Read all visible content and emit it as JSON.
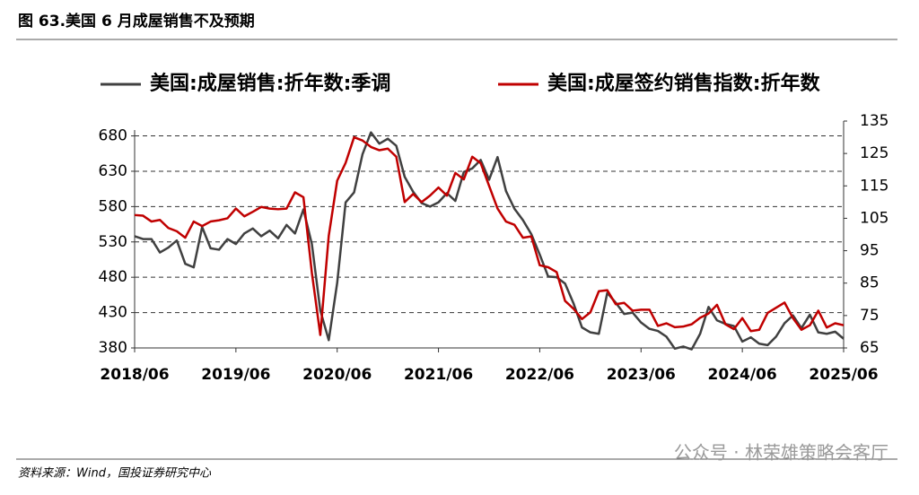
{
  "title": "图 63.美国 6 月成屋销售不及预期",
  "source": "资料来源：Wind，国投证券研究中心",
  "watermark": "公众号 · 林荣雄策略会客厅",
  "chart_data": {
    "type": "line",
    "x": [
      "2018/06",
      "2018/07",
      "2018/08",
      "2018/09",
      "2018/10",
      "2018/11",
      "2018/12",
      "2019/01",
      "2019/02",
      "2019/03",
      "2019/04",
      "2019/05",
      "2019/06",
      "2019/07",
      "2019/08",
      "2019/09",
      "2019/10",
      "2019/11",
      "2019/12",
      "2020/01",
      "2020/02",
      "2020/03",
      "2020/04",
      "2020/05",
      "2020/06",
      "2020/07",
      "2020/08",
      "2020/09",
      "2020/10",
      "2020/11",
      "2020/12",
      "2021/01",
      "2021/02",
      "2021/03",
      "2021/04",
      "2021/05",
      "2021/06",
      "2021/07",
      "2021/08",
      "2021/09",
      "2021/10",
      "2021/11",
      "2021/12",
      "2022/01",
      "2022/02",
      "2022/03",
      "2022/04",
      "2022/05",
      "2022/06",
      "2022/07",
      "2022/08",
      "2022/09",
      "2022/10",
      "2022/11",
      "2022/12",
      "2023/01",
      "2023/02",
      "2023/03",
      "2023/04",
      "2023/05",
      "2023/06",
      "2023/07",
      "2023/08",
      "2023/09",
      "2023/10",
      "2023/11",
      "2023/12",
      "2024/01",
      "2024/02",
      "2024/03",
      "2024/04",
      "2024/05",
      "2024/06",
      "2024/07",
      "2024/08",
      "2024/09",
      "2024/10",
      "2024/11",
      "2024/12",
      "2025/01",
      "2025/02",
      "2025/03",
      "2025/04",
      "2025/05",
      "2025/06"
    ],
    "xticks": [
      "2018/06",
      "2019/06",
      "2020/06",
      "2021/06",
      "2022/06",
      "2023/06",
      "2024/06",
      "2025/06"
    ],
    "series": [
      {
        "name": "美国:成屋销售:折年数:季调",
        "color": "#404040",
        "axis": "y",
        "values": [
          538,
          534,
          534,
          515,
          522,
          532,
          499,
          494,
          551,
          521,
          519,
          534,
          527,
          542,
          549,
          538,
          546,
          535,
          554,
          542,
          576,
          527,
          433,
          391,
          472,
          586,
          600,
          654,
          685,
          669,
          676,
          666,
          622,
          601,
          585,
          580,
          586,
          599,
          588,
          629,
          634,
          646,
          618,
          650,
          602,
          577,
          561,
          541,
          512,
          481,
          480,
          471,
          443,
          409,
          402,
          400,
          458,
          444,
          428,
          430,
          416,
          407,
          404,
          396,
          379,
          382,
          378,
          400,
          438,
          419,
          414,
          411,
          389,
          395,
          386,
          384,
          396,
          415,
          426,
          408,
          427,
          402,
          400,
          403,
          393
        ]
      },
      {
        "name": "美国:成屋签约销售指数:折年数",
        "color": "#c00000",
        "axis": "y2",
        "values": [
          106,
          105.8,
          104,
          104.5,
          102,
          101,
          99,
          104,
          102.6,
          104,
          104.4,
          105,
          108,
          105.6,
          107,
          108.5,
          108,
          107.8,
          108,
          113,
          111.5,
          88.2,
          69,
          99.6,
          116.6,
          122.1,
          130,
          129,
          127,
          126,
          126.5,
          124,
          110,
          112.5,
          110,
          112,
          114.5,
          112,
          119,
          117,
          124,
          122,
          115,
          108,
          104,
          103,
          99,
          99.4,
          90.5,
          89.9,
          88.4,
          79.5,
          77.1,
          73.9,
          76,
          82.5,
          82.8,
          78.5,
          78.9,
          76.5,
          76.8,
          76.8,
          71.8,
          72.6,
          71.4,
          71.6,
          72.3,
          74.3,
          75.6,
          78.3,
          72.3,
          70.8,
          74.2,
          70.2,
          70.6,
          75.8,
          77.4,
          79,
          74.2,
          70.6,
          72,
          76.5,
          71.3,
          72.6,
          72
        ]
      }
    ],
    "ylim": [
      380,
      701
    ],
    "yticks": [
      380,
      430,
      480,
      530,
      580,
      630,
      680
    ],
    "y2lim": [
      65,
      135
    ],
    "y2ticks": [
      65,
      75,
      85,
      95,
      105,
      115,
      125,
      135
    ],
    "grid": true,
    "legend": "top"
  }
}
